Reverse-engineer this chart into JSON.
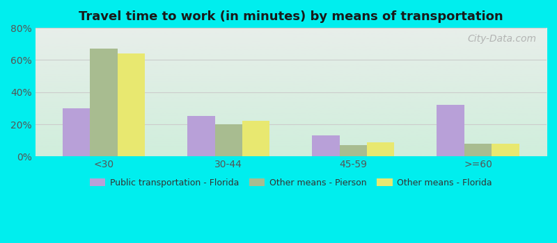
{
  "title": "Travel time to work (in minutes) by means of transportation",
  "categories": [
    "<30",
    "30-44",
    "45-59",
    ">=60"
  ],
  "series": {
    "Public transportation - Florida": [
      30,
      25,
      13,
      32
    ],
    "Other means - Pierson": [
      67,
      20,
      7,
      8
    ],
    "Other means - Florida": [
      64,
      22,
      9,
      8
    ]
  },
  "colors": {
    "Public transportation - Florida": "#b8a0d8",
    "Other means - Pierson": "#a8bc90",
    "Other means - Florida": "#e8e870"
  },
  "ylim": [
    0,
    80
  ],
  "yticks": [
    0,
    20,
    40,
    60,
    80
  ],
  "ytick_labels": [
    "0%",
    "20%",
    "40%",
    "60%",
    "80%"
  ],
  "background_color": "#00eeee",
  "bar_width": 0.22,
  "title_fontsize": 13,
  "watermark": "City-Data.com",
  "grid_color": "#cccccc",
  "plot_bg_top": "#e8eeea",
  "plot_bg_bottom": "#d0eedc"
}
